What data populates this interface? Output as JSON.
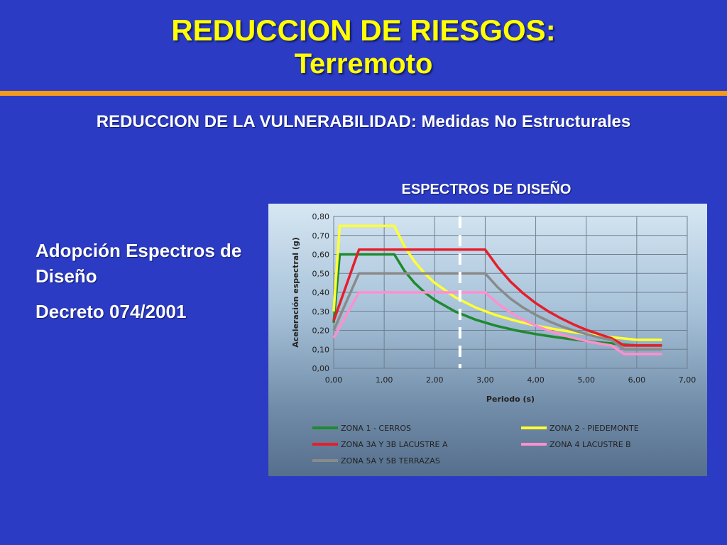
{
  "header": {
    "title_line1": "REDUCCION DE RIESGOS:",
    "title_line2": "Terremoto",
    "subtitle": "REDUCCION DE LA VULNERABILIDAD: Medidas No Estructurales"
  },
  "left_text": {
    "line1": "Adopción Espectros de Diseño",
    "line2": "Decreto 074/2001"
  },
  "colors": {
    "background": "#2b3bc4",
    "title": "#ffff00",
    "rule": "#f39a1b"
  },
  "chart_heading": "ESPECTROS DE DISEÑO",
  "chart_data": {
    "type": "line",
    "title": "",
    "xlabel": "Periodo (s)",
    "ylabel": "Aceleración espectral (g)",
    "xlim": [
      0,
      7
    ],
    "ylim": [
      0,
      0.8
    ],
    "x_ticks": [
      "0,00",
      "1,00",
      "2,00",
      "3,00",
      "4,00",
      "5,00",
      "6,00",
      "7,00"
    ],
    "y_ticks": [
      "0,00",
      "0,10",
      "0,20",
      "0,30",
      "0,40",
      "0,50",
      "0,60",
      "0,70",
      "0,80"
    ],
    "grid": true,
    "legend_position": "bottom",
    "marker_line": {
      "x": 2.5,
      "style": "dashed",
      "color": "#ffffff"
    },
    "series": [
      {
        "name": "ZONA 1 - CERROS",
        "color": "#1e8a2e",
        "points": [
          [
            0,
            0.24
          ],
          [
            0.12,
            0.6
          ],
          [
            1.2,
            0.6
          ],
          [
            1.4,
            0.514
          ],
          [
            1.6,
            0.45
          ],
          [
            1.8,
            0.4
          ],
          [
            2.0,
            0.36
          ],
          [
            2.4,
            0.3
          ],
          [
            2.8,
            0.257
          ],
          [
            3.2,
            0.225
          ],
          [
            3.6,
            0.2
          ],
          [
            4.0,
            0.18
          ],
          [
            4.4,
            0.164
          ],
          [
            4.8,
            0.15
          ],
          [
            5.2,
            0.138
          ],
          [
            5.6,
            0.129
          ],
          [
            6.0,
            0.12
          ],
          [
            6.5,
            0.12
          ]
        ]
      },
      {
        "name": "ZONA 2 - PIEDEMONTE",
        "color": "#ffff33",
        "points": [
          [
            0,
            0.3
          ],
          [
            0.12,
            0.75
          ],
          [
            1.2,
            0.75
          ],
          [
            1.4,
            0.643
          ],
          [
            1.6,
            0.563
          ],
          [
            1.8,
            0.5
          ],
          [
            2.0,
            0.45
          ],
          [
            2.4,
            0.375
          ],
          [
            2.8,
            0.321
          ],
          [
            3.2,
            0.281
          ],
          [
            3.6,
            0.25
          ],
          [
            4.0,
            0.225
          ],
          [
            4.4,
            0.205
          ],
          [
            4.8,
            0.188
          ],
          [
            5.2,
            0.173
          ],
          [
            5.6,
            0.161
          ],
          [
            6.0,
            0.15
          ],
          [
            6.5,
            0.15
          ]
        ]
      },
      {
        "name": "ZONA 3A Y 3B LACUSTRE A",
        "color": "#e61e2a",
        "points": [
          [
            0,
            0.25
          ],
          [
            0.5,
            0.625
          ],
          [
            3.0,
            0.625
          ],
          [
            3.25,
            0.533
          ],
          [
            3.5,
            0.457
          ],
          [
            3.75,
            0.395
          ],
          [
            4.0,
            0.343
          ],
          [
            4.25,
            0.3
          ],
          [
            4.5,
            0.263
          ],
          [
            4.75,
            0.231
          ],
          [
            5.0,
            0.203
          ],
          [
            5.25,
            0.18
          ],
          [
            5.5,
            0.158
          ],
          [
            5.75,
            0.12
          ],
          [
            6.5,
            0.12
          ]
        ]
      },
      {
        "name": "ZONA 4 LACUSTRE B",
        "color": "#ff8fcf",
        "points": [
          [
            0,
            0.16
          ],
          [
            0.5,
            0.4
          ],
          [
            3.0,
            0.4
          ],
          [
            3.25,
            0.341
          ],
          [
            3.5,
            0.294
          ],
          [
            3.75,
            0.256
          ],
          [
            4.0,
            0.225
          ],
          [
            4.25,
            0.199
          ],
          [
            4.5,
            0.178
          ],
          [
            4.75,
            0.16
          ],
          [
            5.0,
            0.144
          ],
          [
            5.25,
            0.131
          ],
          [
            5.5,
            0.12
          ],
          [
            5.75,
            0.075
          ],
          [
            6.5,
            0.075
          ]
        ]
      },
      {
        "name": "ZONA 5A Y 5B TERRAZAS",
        "color": "#8a8a8a",
        "points": [
          [
            0,
            0.2
          ],
          [
            0.5,
            0.5
          ],
          [
            3.0,
            0.5
          ],
          [
            3.25,
            0.426
          ],
          [
            3.5,
            0.367
          ],
          [
            3.75,
            0.32
          ],
          [
            4.0,
            0.281
          ],
          [
            4.25,
            0.249
          ],
          [
            4.5,
            0.222
          ],
          [
            4.75,
            0.2
          ],
          [
            5.0,
            0.18
          ],
          [
            5.25,
            0.163
          ],
          [
            5.5,
            0.149
          ],
          [
            5.75,
            0.1
          ],
          [
            6.5,
            0.1
          ]
        ]
      }
    ]
  }
}
